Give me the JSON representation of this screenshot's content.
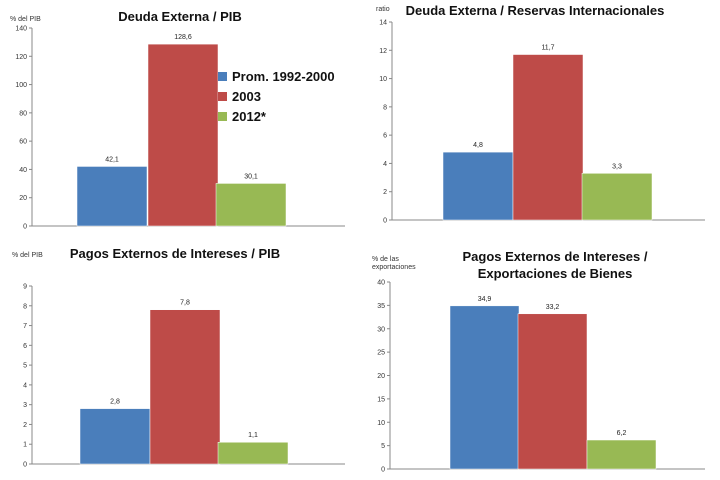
{
  "legend": {
    "items": [
      {
        "label": "Prom. 1992-2000",
        "color": "#4a7ebb"
      },
      {
        "label": "2003",
        "color": "#be4b48"
      },
      {
        "label": "2012*",
        "color": "#98b954"
      }
    ]
  },
  "chart_data": [
    {
      "type": "bar",
      "title": "Deuda Externa / PIB",
      "unit_label": "% del PIB",
      "categories": [
        "Prom. 1992-2000",
        "2003",
        "2012*"
      ],
      "values": [
        42.1,
        128.6,
        30.1
      ],
      "value_labels": [
        "42,1",
        "128,6",
        "30,1"
      ],
      "ylim": [
        0,
        140
      ],
      "yticks": [
        0,
        20,
        40,
        60,
        80,
        100,
        120,
        140
      ],
      "grid": false
    },
    {
      "type": "bar",
      "title": "Deuda Externa / Reservas Internacionales",
      "unit_label": "ratio",
      "categories": [
        "Prom. 1992-2000",
        "2003",
        "2012*"
      ],
      "values": [
        4.8,
        11.7,
        3.3
      ],
      "value_labels": [
        "4,8",
        "11,7",
        "3,3"
      ],
      "ylim": [
        0,
        14
      ],
      "yticks": [
        0,
        2,
        4,
        6,
        8,
        10,
        12,
        14
      ],
      "grid": false
    },
    {
      "type": "bar",
      "title": "Pagos Externos de Intereses / PIB",
      "unit_label": "% del PIB",
      "categories": [
        "Prom. 1992-2000",
        "2003",
        "2012*"
      ],
      "values": [
        2.8,
        7.8,
        1.1
      ],
      "value_labels": [
        "2,8",
        "7,8",
        "1,1"
      ],
      "ylim": [
        0,
        9
      ],
      "yticks": [
        0,
        1,
        2,
        3,
        4,
        5,
        6,
        7,
        8,
        9
      ],
      "grid": false
    },
    {
      "type": "bar",
      "title": "Pagos Externos de Intereses / Exportaciones de Bienes",
      "title_lines": [
        "Pagos Externos de Intereses /",
        "Exportaciones de Bienes"
      ],
      "unit_label": "% de las exportaciones",
      "unit_lines": [
        "% de las",
        "exportaciones"
      ],
      "categories": [
        "Prom. 1992-2000",
        "2003",
        "2012*"
      ],
      "values": [
        34.9,
        33.2,
        6.2
      ],
      "value_labels": [
        "34,9",
        "33,2",
        "6,2"
      ],
      "ylim": [
        0,
        40
      ],
      "yticks": [
        0,
        5,
        10,
        15,
        20,
        25,
        30,
        35,
        40
      ],
      "grid": false
    }
  ]
}
